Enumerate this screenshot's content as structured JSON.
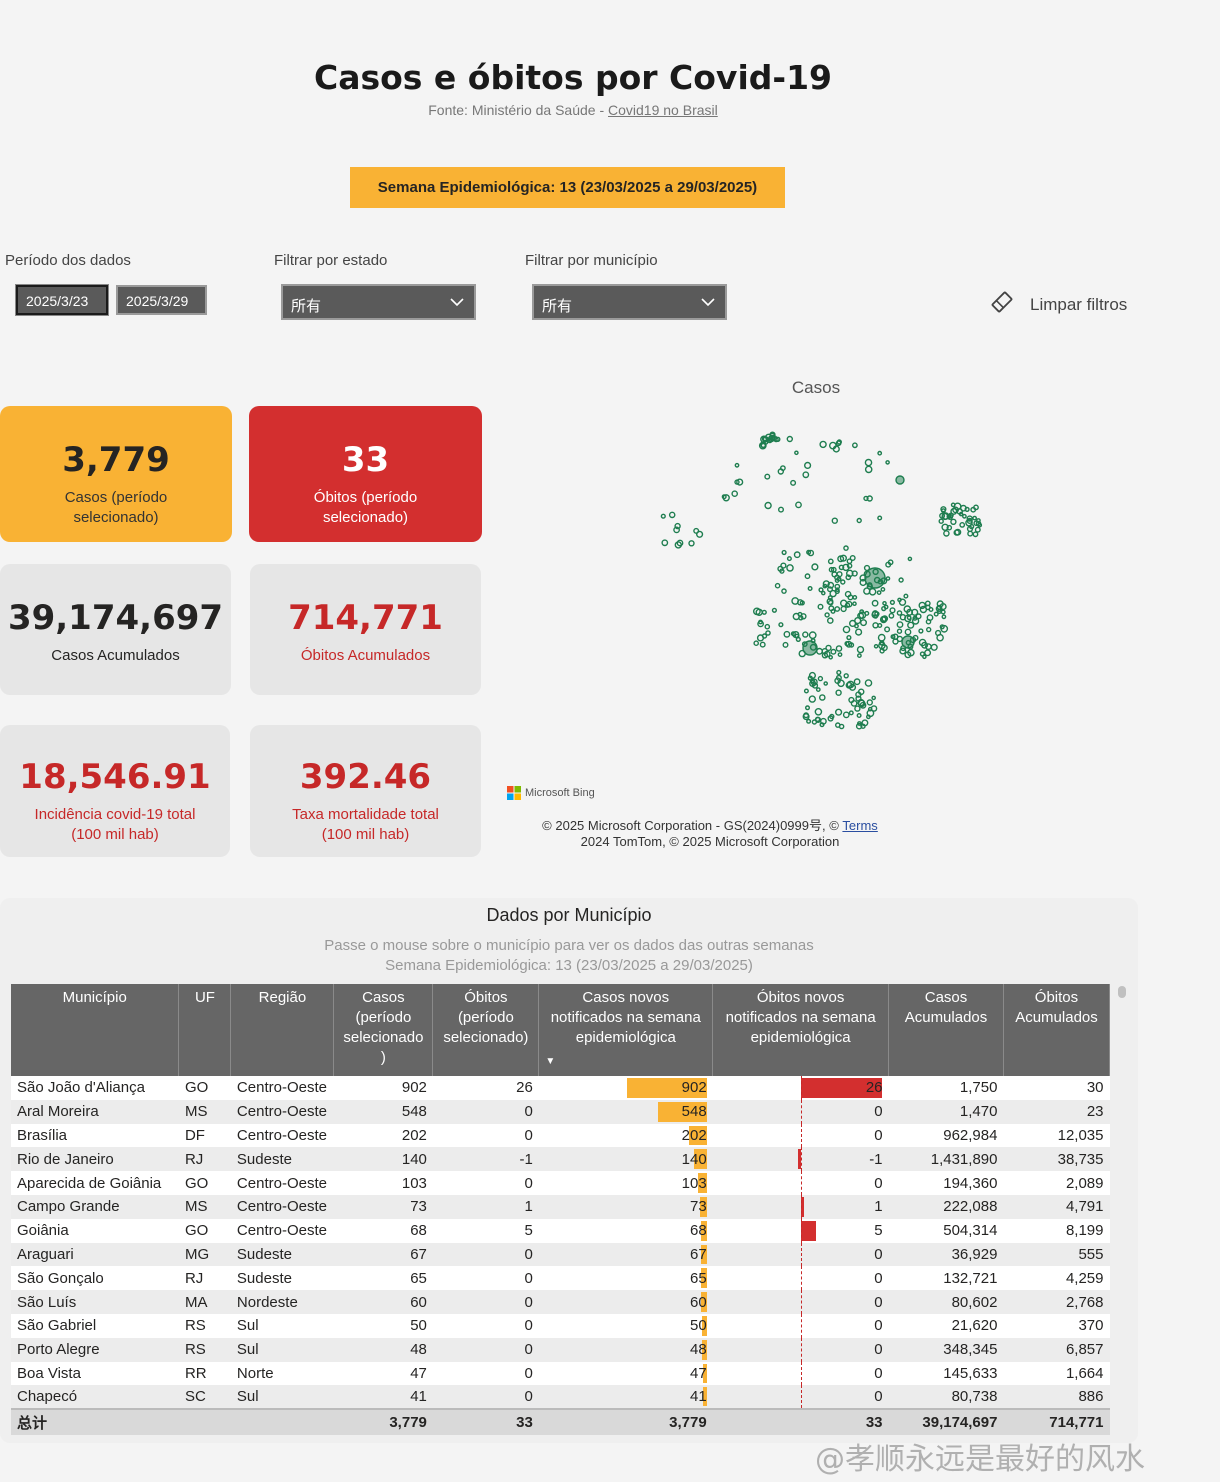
{
  "header": {
    "title": "Casos e óbitos por Covid-19",
    "source_prefix": "Fonte: Ministério da Saúde - ",
    "source_link": "Covid19 no Brasil",
    "week_banner": "Semana Epidemiológica: 13 (23/03/2025 a 29/03/2025)"
  },
  "filters": {
    "period_label": "Período dos dados",
    "date_start": "2025/3/23",
    "date_end": "2025/3/29",
    "state_label": "Filtrar por estado",
    "state_value": "所有",
    "city_label": "Filtrar por município",
    "city_value": "所有",
    "clear_label": "Limpar filtros"
  },
  "kpis": {
    "cases_period": {
      "value": "3,779",
      "label": "Casos (período selecionado)"
    },
    "deaths_period": {
      "value": "33",
      "label": "Óbitos (período selecionado)"
    },
    "cases_total": {
      "value": "39,174,697",
      "label": "Casos Acumulados"
    },
    "deaths_total": {
      "value": "714,771",
      "label": "Óbitos Acumulados"
    },
    "incidence": {
      "value": "18,546.91",
      "label_line1": "Incidência covid-19 total",
      "label_line2": "(100 mil hab)"
    },
    "mortality": {
      "value": "392.46",
      "label_line1": "Taxa mortalidade total",
      "label_line2": "(100 mil hab)"
    }
  },
  "map": {
    "title": "Casos",
    "bing_label": "Microsoft Bing",
    "copyright_line1": "© 2025 Microsoft Corporation - GS(2024)0999号, © ",
    "terms": "Terms",
    "copyright_line2": "2024 TomTom, © 2025 Microsoft Corporation",
    "marker_color": "#1e7d4f"
  },
  "table": {
    "title": "Dados por Município",
    "subtitle1": "Passe o mouse sobre o município para ver os dados das outras semanas",
    "subtitle2": "Semana Epidemiológica: 13 (23/03/2025 a 29/03/2025)",
    "headers": [
      "Município",
      "UF",
      "Região",
      "Casos (período selecionado )",
      "Óbitos (período selecionado)",
      "Casos novos notificados na semana epidemiológica",
      "Óbitos novos notificados na semana epidemiológica",
      "Casos Acumulados",
      "Óbitos Acumulados"
    ],
    "rows": [
      {
        "municipio": "São João d'Aliança",
        "uf": "GO",
        "regiao": "Centro-Oeste",
        "casos": "902",
        "obitos": "26",
        "casos_novos": 902,
        "obitos_novos": 26,
        "casos_acum": "1,750",
        "obitos_acum": "30"
      },
      {
        "municipio": "Aral Moreira",
        "uf": "MS",
        "regiao": "Centro-Oeste",
        "casos": "548",
        "obitos": "0",
        "casos_novos": 548,
        "obitos_novos": 0,
        "casos_acum": "1,470",
        "obitos_acum": "23"
      },
      {
        "municipio": "Brasília",
        "uf": "DF",
        "regiao": "Centro-Oeste",
        "casos": "202",
        "obitos": "0",
        "casos_novos": 202,
        "obitos_novos": 0,
        "casos_acum": "962,984",
        "obitos_acum": "12,035"
      },
      {
        "municipio": "Rio de Janeiro",
        "uf": "RJ",
        "regiao": "Sudeste",
        "casos": "140",
        "obitos": "-1",
        "casos_novos": 140,
        "obitos_novos": -1,
        "casos_acum": "1,431,890",
        "obitos_acum": "38,735"
      },
      {
        "municipio": "Aparecida de Goiânia",
        "uf": "GO",
        "regiao": "Centro-Oeste",
        "casos": "103",
        "obitos": "0",
        "casos_novos": 103,
        "obitos_novos": 0,
        "casos_acum": "194,360",
        "obitos_acum": "2,089"
      },
      {
        "municipio": "Campo Grande",
        "uf": "MS",
        "regiao": "Centro-Oeste",
        "casos": "73",
        "obitos": "1",
        "casos_novos": 73,
        "obitos_novos": 1,
        "casos_acum": "222,088",
        "obitos_acum": "4,791"
      },
      {
        "municipio": "Goiânia",
        "uf": "GO",
        "regiao": "Centro-Oeste",
        "casos": "68",
        "obitos": "5",
        "casos_novos": 68,
        "obitos_novos": 5,
        "casos_acum": "504,314",
        "obitos_acum": "8,199"
      },
      {
        "municipio": "Araguari",
        "uf": "MG",
        "regiao": "Sudeste",
        "casos": "67",
        "obitos": "0",
        "casos_novos": 67,
        "obitos_novos": 0,
        "casos_acum": "36,929",
        "obitos_acum": "555"
      },
      {
        "municipio": "São Gonçalo",
        "uf": "RJ",
        "regiao": "Sudeste",
        "casos": "65",
        "obitos": "0",
        "casos_novos": 65,
        "obitos_novos": 0,
        "casos_acum": "132,721",
        "obitos_acum": "4,259"
      },
      {
        "municipio": "São Luís",
        "uf": "MA",
        "regiao": "Nordeste",
        "casos": "60",
        "obitos": "0",
        "casos_novos": 60,
        "obitos_novos": 0,
        "casos_acum": "80,602",
        "obitos_acum": "2,768"
      },
      {
        "municipio": "São Gabriel",
        "uf": "RS",
        "regiao": "Sul",
        "casos": "50",
        "obitos": "0",
        "casos_novos": 50,
        "obitos_novos": 0,
        "casos_acum": "21,620",
        "obitos_acum": "370"
      },
      {
        "municipio": "Porto Alegre",
        "uf": "RS",
        "regiao": "Sul",
        "casos": "48",
        "obitos": "0",
        "casos_novos": 48,
        "obitos_novos": 0,
        "casos_acum": "348,345",
        "obitos_acum": "6,857"
      },
      {
        "municipio": "Boa Vista",
        "uf": "RR",
        "regiao": "Norte",
        "casos": "47",
        "obitos": "0",
        "casos_novos": 47,
        "obitos_novos": 0,
        "casos_acum": "145,633",
        "obitos_acum": "1,664"
      },
      {
        "municipio": "Chapecó",
        "uf": "SC",
        "regiao": "Sul",
        "casos": "41",
        "obitos": "0",
        "casos_novos": 41,
        "obitos_novos": 0,
        "casos_acum": "80,738",
        "obitos_acum": "886"
      }
    ],
    "total": {
      "label": "总计",
      "casos": "3,779",
      "obitos": "33",
      "casos_novos": "3,779",
      "obitos_novos": "33",
      "casos_acum": "39,174,697",
      "obitos_acum": "714,771"
    },
    "bar_colors": {
      "cases": "#f9b234",
      "deaths": "#d32f2f"
    }
  },
  "watermark": "@孝顺永远是最好的风水"
}
